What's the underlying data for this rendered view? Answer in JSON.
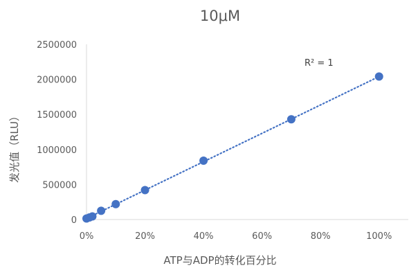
{
  "chart_data": {
    "type": "scatter",
    "title": "10μM",
    "xlabel": "ATP与ADP的转化百分比",
    "ylabel": "发光值（RLU）",
    "xlim": [
      0,
      1.1
    ],
    "ylim": [
      0,
      2500000
    ],
    "x_ticks": [
      0,
      0.2,
      0.4,
      0.6,
      0.8,
      1.0
    ],
    "x_tick_labels": [
      "0%",
      "20%",
      "40%",
      "60%",
      "80%",
      "100%"
    ],
    "y_ticks": [
      0,
      500000,
      1000000,
      1500000,
      2000000,
      2500000
    ],
    "y_tick_labels": [
      "0",
      "500000",
      "1000000",
      "1500000",
      "2000000",
      "2500000"
    ],
    "grid": false,
    "series": [
      {
        "x": [
          0,
          0.01,
          0.02,
          0.05,
          0.1,
          0.2,
          0.4,
          0.7,
          1.0
        ],
        "y": [
          15000,
          30000,
          45000,
          125000,
          220000,
          420000,
          840000,
          1430000,
          2040000
        ],
        "color": "#4472c4"
      }
    ],
    "trendline": {
      "type": "linear",
      "style": "dotted",
      "color": "#4472c4",
      "x_range": [
        0,
        1.0
      ],
      "y_range": [
        15000,
        2040000
      ]
    },
    "annotation": "R² = 1"
  }
}
